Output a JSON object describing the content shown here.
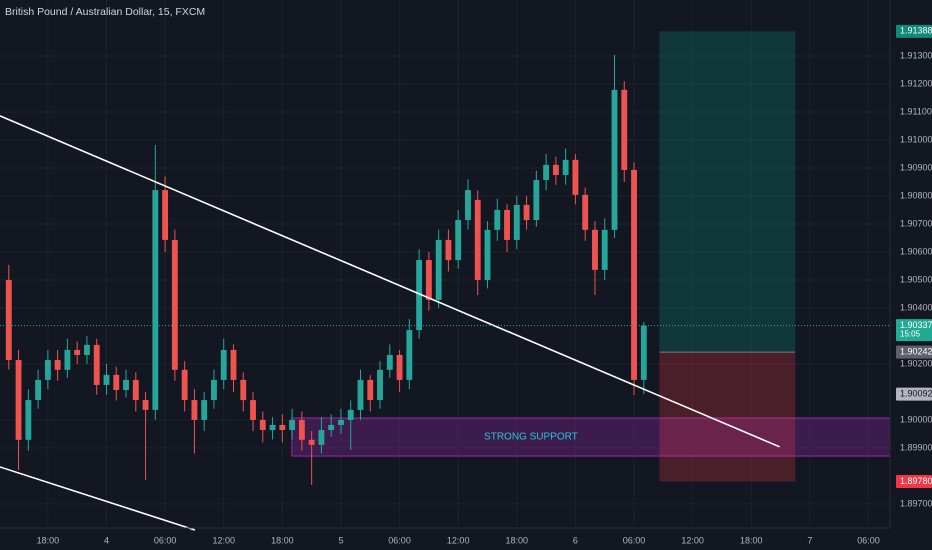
{
  "chart_data": {
    "type": "candlestick",
    "title": "British Pound / Australian Dollar, 15, FXCM",
    "x": [
      -4,
      -3,
      -2,
      -1,
      0,
      1,
      2,
      3,
      4,
      5,
      6,
      7,
      8,
      9,
      10,
      11,
      12,
      13,
      14,
      15,
      16,
      17,
      18,
      19,
      20,
      21,
      22,
      23,
      24,
      25,
      26,
      27,
      28,
      29,
      30,
      31,
      32,
      33,
      34,
      35,
      36,
      37,
      38,
      39,
      40,
      41,
      42,
      43,
      44,
      45,
      46,
      47,
      48,
      49,
      50,
      51,
      52,
      53,
      54,
      55,
      56,
      57,
      58,
      59,
      60,
      61
    ],
    "open": [
      1.905,
      1.90214,
      1.89929,
      1.90071,
      1.90143,
      1.90214,
      1.90179,
      1.9025,
      1.90232,
      1.90268,
      1.90125,
      1.90161,
      1.90107,
      1.90143,
      1.90071,
      1.90036,
      1.90821,
      1.90643,
      1.90179,
      1.90071,
      1.9,
      1.90071,
      1.90143,
      1.9025,
      1.90143,
      1.90071,
      1.9,
      1.89964,
      1.89982,
      1.89964,
      1.9,
      1.89929,
      1.89911,
      1.89964,
      1.89982,
      1.9,
      1.90036,
      1.90143,
      1.90071,
      1.90179,
      1.90232,
      1.90143,
      1.90321,
      1.90571,
      1.90429,
      1.90643,
      1.90571,
      1.90714,
      1.90786,
      1.905,
      1.90679,
      1.9075,
      1.90643,
      1.90768,
      1.90714,
      1.90857,
      1.90911,
      1.90875,
      1.90929,
      1.90804,
      1.90679,
      1.90536,
      1.90679,
      1.91179,
      1.90893,
      1.90143
    ],
    "high": [
      1.90554,
      1.9025,
      1.9011,
      1.9018,
      1.9025,
      1.9025,
      1.9029,
      1.9028,
      1.903,
      1.9029,
      1.902,
      1.9019,
      1.9018,
      1.9017,
      1.901,
      1.90982,
      1.9087,
      1.9068,
      1.9021,
      1.9011,
      1.901,
      1.9018,
      1.9029,
      1.9027,
      1.9017,
      1.901,
      1.9003,
      1.9001,
      1.9002,
      1.9004,
      1.9003,
      1.8996,
      1.9001,
      1.9002,
      1.9004,
      1.9007,
      1.9018,
      1.9016,
      1.9021,
      1.9027,
      1.9025,
      1.9036,
      1.9061,
      1.906,
      1.9068,
      1.9068,
      1.9075,
      1.9086,
      1.9082,
      1.9071,
      1.9079,
      1.9077,
      1.908,
      1.908,
      1.9089,
      1.9095,
      1.9094,
      1.9097,
      1.9095,
      1.9083,
      1.9071,
      1.9072,
      1.91304,
      1.9121,
      1.9092,
      1.9035
    ],
    "low": [
      1.9018,
      1.89821,
      1.8989,
      1.9004,
      1.9011,
      1.9014,
      1.9015,
      1.902,
      1.902,
      1.9009,
      1.9009,
      1.9007,
      1.9008,
      1.9003,
      1.89786,
      1.9,
      1.906,
      1.9014,
      1.9003,
      1.8988,
      1.8996,
      1.9004,
      1.9011,
      1.901,
      1.9003,
      1.8996,
      1.8992,
      1.8993,
      1.8992,
      1.8993,
      1.8989,
      1.89768,
      1.8988,
      1.8994,
      1.8995,
      1.89893,
      1.9,
      1.9003,
      1.9004,
      1.9015,
      1.901,
      1.9011,
      1.9029,
      1.9039,
      1.904,
      1.9053,
      1.9054,
      1.9068,
      1.90446,
      1.9047,
      1.9064,
      1.906,
      1.9061,
      1.9068,
      1.9069,
      1.9082,
      1.9084,
      1.9084,
      1.9077,
      1.9064,
      1.90446,
      1.905,
      1.9065,
      1.9085,
      1.90089,
      1.90092
    ],
    "close": [
      1.90214,
      1.89929,
      1.90071,
      1.90143,
      1.90214,
      1.90179,
      1.9025,
      1.90232,
      1.90268,
      1.90125,
      1.90161,
      1.90107,
      1.90143,
      1.90071,
      1.90036,
      1.90821,
      1.90643,
      1.90179,
      1.90071,
      1.9,
      1.90071,
      1.90143,
      1.9025,
      1.90143,
      1.90071,
      1.9,
      1.89964,
      1.89982,
      1.89964,
      1.9,
      1.89929,
      1.89911,
      1.89964,
      1.89982,
      1.9,
      1.90036,
      1.90143,
      1.90071,
      1.90179,
      1.90232,
      1.90143,
      1.90321,
      1.90571,
      1.90429,
      1.90643,
      1.90571,
      1.90714,
      1.90821,
      1.905,
      1.90679,
      1.9075,
      1.90643,
      1.90768,
      1.90714,
      1.90857,
      1.90911,
      1.90875,
      1.90929,
      1.90804,
      1.90679,
      1.90536,
      1.90679,
      1.91179,
      1.90893,
      1.90143,
      1.90337
    ],
    "up_color": "#26a69a",
    "down_color": "#ef5350",
    "xlim": [
      -4.9,
      86.2
    ],
    "xticks": [
      {
        "value": 0,
        "label": "18:00"
      },
      {
        "value": 6,
        "label": "4"
      },
      {
        "value": 12,
        "label": "06:00"
      },
      {
        "value": 18,
        "label": "12:00"
      },
      {
        "value": 24,
        "label": "18:00"
      },
      {
        "value": 30,
        "label": "5"
      },
      {
        "value": 36,
        "label": "06:00"
      },
      {
        "value": 42,
        "label": "12:00"
      },
      {
        "value": 48,
        "label": "18:00"
      },
      {
        "value": 54,
        "label": "6"
      },
      {
        "value": 60,
        "label": "06:00"
      },
      {
        "value": 66,
        "label": "12:00"
      },
      {
        "value": 72,
        "label": "18:00"
      },
      {
        "value": 78,
        "label": "7"
      },
      {
        "value": 84,
        "label": "06:00"
      }
    ],
    "ylim": [
      1.89614,
      1.915
    ],
    "yticks": [
      {
        "value": 1.897,
        "label": "1.89700"
      },
      {
        "value": 1.899,
        "label": "1.89900"
      },
      {
        "value": 1.9,
        "label": "1.90000"
      },
      {
        "value": 1.902,
        "label": "1.90200"
      },
      {
        "value": 1.904,
        "label": "1.90400"
      },
      {
        "value": 1.905,
        "label": "1.90500"
      },
      {
        "value": 1.906,
        "label": "1.90600"
      },
      {
        "value": 1.907,
        "label": "1.90700"
      },
      {
        "value": 1.908,
        "label": "1.90800"
      },
      {
        "value": 1.909,
        "label": "1.90900"
      },
      {
        "value": 1.91,
        "label": "1.91000"
      },
      {
        "value": 1.911,
        "label": "1.91100"
      },
      {
        "value": 1.912,
        "label": "1.91200"
      },
      {
        "value": 1.913,
        "label": "1.91300"
      }
    ],
    "grid": true,
    "price_labels": [
      {
        "value": 1.91388,
        "label": "1.91388",
        "color": "#0f8a78",
        "text_color": "#ffffff"
      },
      {
        "value": 1.90337,
        "label": "1.90337",
        "sublabel": "15:05",
        "color": "#22ab94",
        "text_color": "#ffffff",
        "dashed_line": true
      },
      {
        "value": 1.90242,
        "label": "1.90242",
        "color": "#5d606b",
        "text_color": "#ffffff"
      },
      {
        "value": 1.90092,
        "label": "1.90092",
        "color": "#b2b5be",
        "text_color": "#131722"
      },
      {
        "value": 1.8978,
        "label": "1.89780",
        "color": "#f23645",
        "text_color": "#ffffff"
      }
    ],
    "position": {
      "x_start": 62.6,
      "x_end": 76.5,
      "entry": 1.90242,
      "target": 1.91388,
      "stop": 1.8978,
      "profit_color": "#089981",
      "loss_color": "#f23645"
    },
    "zone": {
      "label": "STRONG SUPPORT",
      "x_start": 24.97,
      "top": 1.90007,
      "bottom": 1.89871,
      "color": "#9c27b0",
      "text_color": "#26c6da"
    },
    "trend_lines": [
      {
        "x": [
          -4.9,
          74.9
        ],
        "values": [
          1.91086,
          1.89904
        ],
        "color": "#ffffff"
      },
      {
        "x": [
          -4.9,
          15.05
        ],
        "values": [
          1.89832,
          1.89607
        ],
        "color": "#ffffff"
      }
    ]
  }
}
